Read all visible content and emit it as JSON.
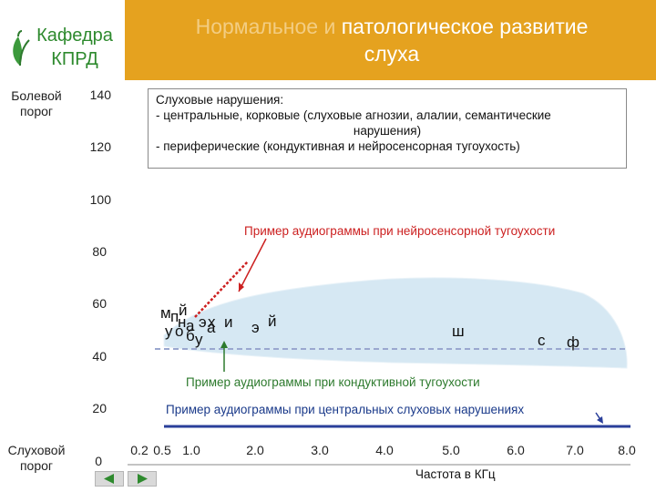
{
  "header": {
    "title_faded": "Нормальное и ",
    "title_line1": "патологическое развитие",
    "title_line2": "слуха"
  },
  "logo": {
    "line1": "Кафедра",
    "line2": "КПРД",
    "icon": "leaf-icon"
  },
  "left_labels": {
    "pain_threshold": "Болевой порог",
    "hearing_threshold": "Слуховой порог"
  },
  "y_ticks": [
    "140",
    "120",
    "100",
    "80",
    "60",
    "40",
    "20",
    "0"
  ],
  "x_ticks": [
    "0.2",
    "0.5",
    "1.0",
    "2.0",
    "3.0",
    "4.0",
    "5.0",
    "6.0",
    "7.0",
    "8.0"
  ],
  "x_axis_title": "Частота в КГц",
  "info_box": {
    "line1": "Слуховые нарушения:",
    "line2": "- центральные, корковые (слуховые агнозии, алалии, семантические",
    "line3": "нарушения)",
    "line4": "- периферические (кондуктивная и нейросенсорная тугоухость)"
  },
  "annotations": {
    "sensorineural": "Пример аудиограммы при нейросенсорной тугоухости",
    "conductive": "Пример аудиограммы при кондуктивной тугоухости",
    "central": "Пример аудиограммы при центральных слуховых нарушениях"
  },
  "speech_sounds": [
    "м",
    "п",
    "й",
    "н",
    "у",
    "о",
    "а",
    "б",
    "у",
    "а",
    "э",
    "х",
    "и",
    "э",
    "й",
    "ш",
    "с",
    "ф"
  ],
  "colors": {
    "header": "#e5a21f",
    "logo_green": "#2e8a2e",
    "sensorineural_red": "#cc2020",
    "conductive_green": "#2d7a2d",
    "central_blue": "#2a3f9a",
    "speech_area": "#d6e8f3",
    "dashed_line": "#9aa7cf"
  }
}
